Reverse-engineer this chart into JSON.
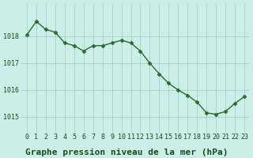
{
  "x": [
    0,
    1,
    2,
    3,
    4,
    5,
    6,
    7,
    8,
    9,
    10,
    11,
    12,
    13,
    14,
    15,
    16,
    17,
    18,
    19,
    20,
    21,
    22,
    23
  ],
  "y": [
    1018.05,
    1018.55,
    1018.25,
    1018.15,
    1017.75,
    1017.65,
    1017.45,
    1017.65,
    1017.65,
    1017.75,
    1017.85,
    1017.75,
    1017.45,
    1017.0,
    1016.6,
    1016.25,
    1016.0,
    1015.8,
    1015.55,
    1015.15,
    1015.1,
    1015.2,
    1015.5,
    1015.75
  ],
  "line_color": "#2d6a2d",
  "marker": "D",
  "markersize": 2.5,
  "linewidth": 1.0,
  "bg_color": "#cceee8",
  "grid_color": "#aacccc",
  "title": "Graphe pression niveau de la mer (hPa)",
  "title_fontsize": 8,
  "title_color": "#1a4a1a",
  "yticks": [
    1015,
    1016,
    1017,
    1018
  ],
  "ylim": [
    1014.5,
    1019.2
  ],
  "xlim": [
    -0.5,
    23.5
  ],
  "xtick_labels": [
    "0",
    "1",
    "2",
    "3",
    "4",
    "5",
    "6",
    "7",
    "8",
    "9",
    "10",
    "11",
    "12",
    "13",
    "14",
    "15",
    "16",
    "17",
    "18",
    "19",
    "20",
    "21",
    "22",
    "23"
  ],
  "tick_fontsize": 6.0,
  "tick_color": "#1a4a1a"
}
